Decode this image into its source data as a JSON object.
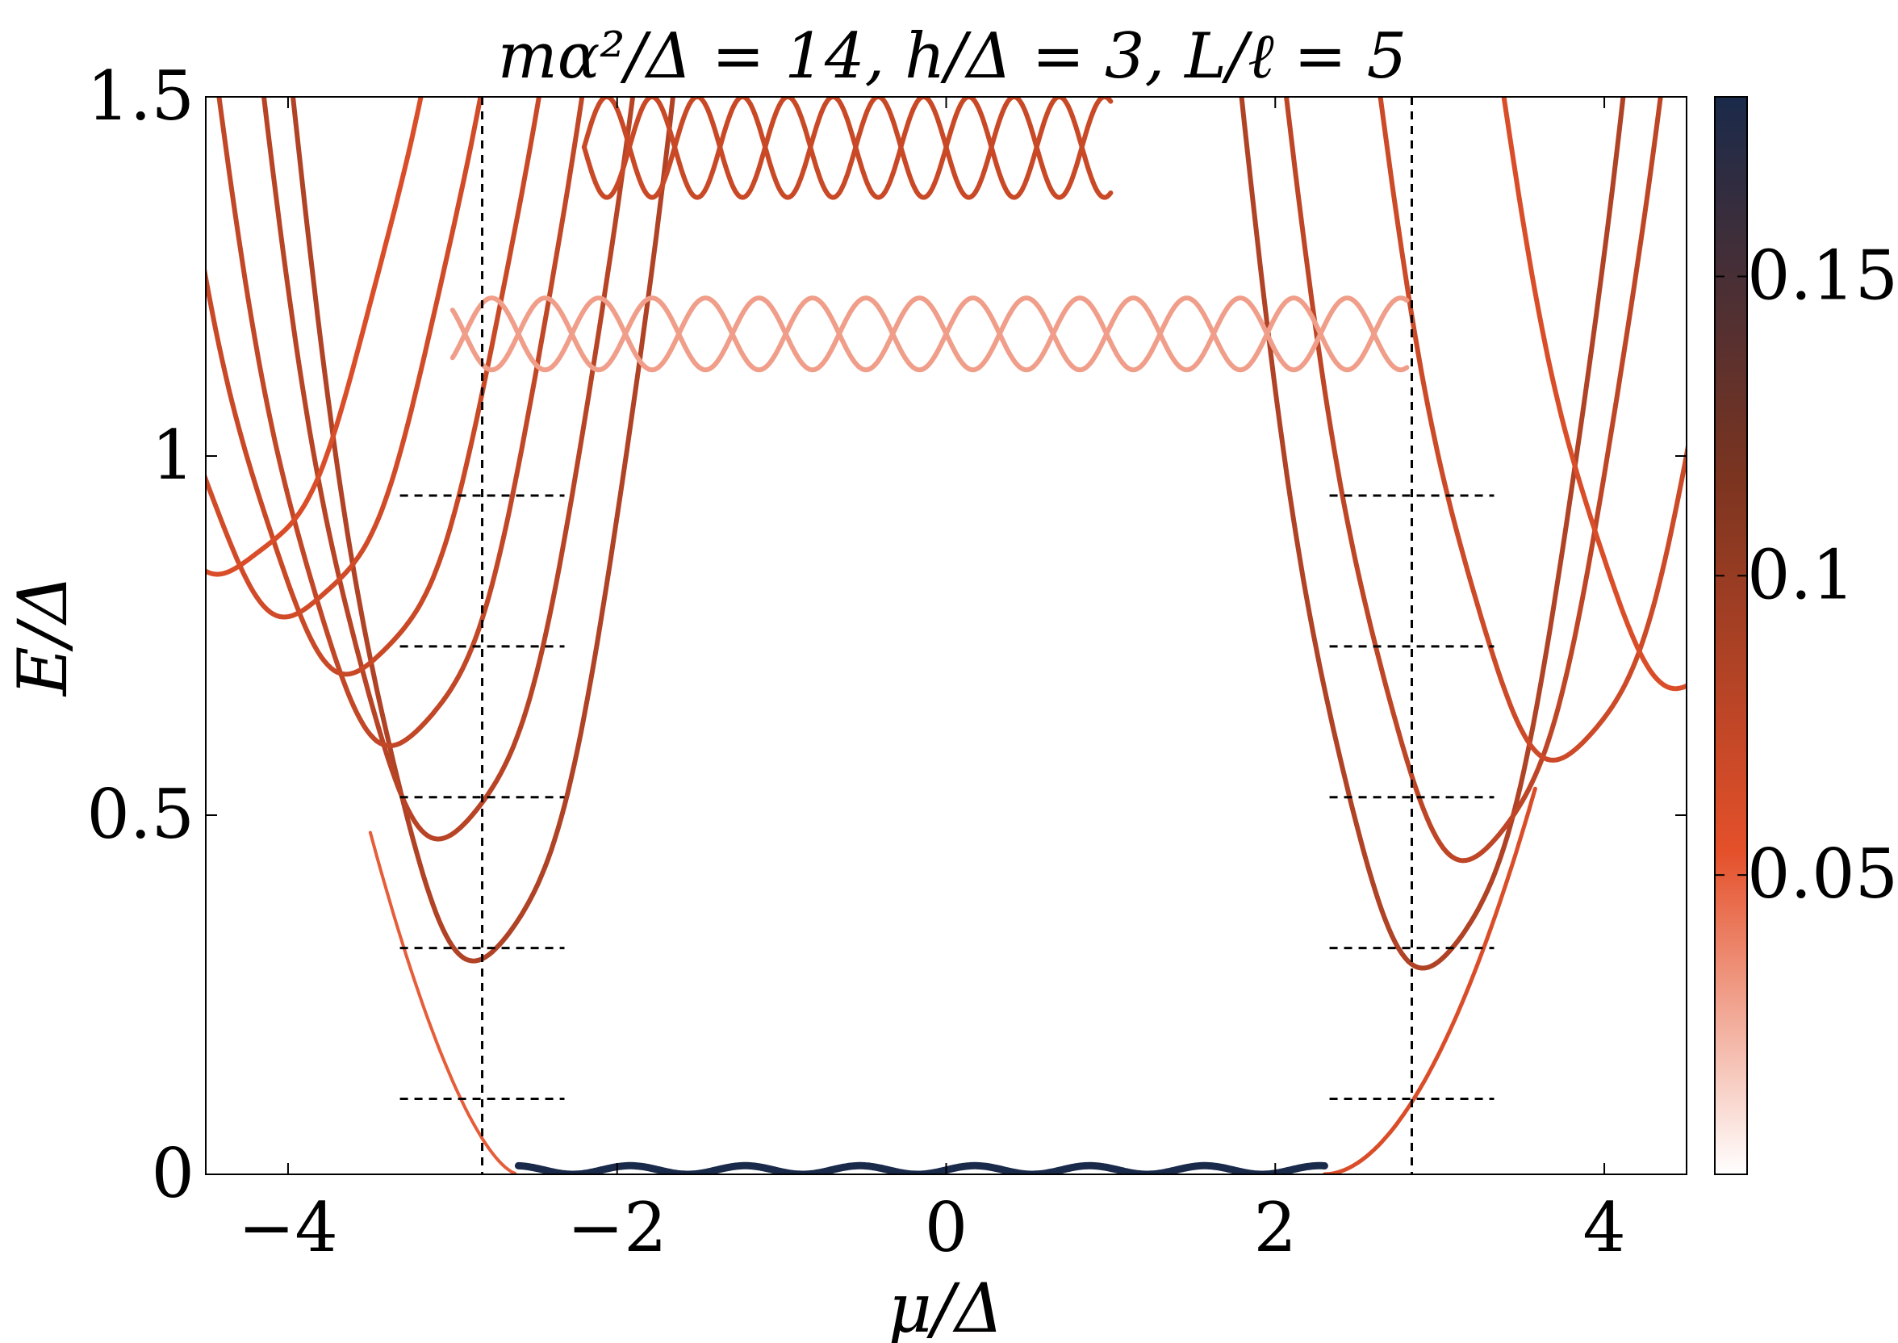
{
  "chart_data": {
    "type": "heatmap",
    "title": "mα²/Δ = 14, h/Δ = 3, L/ℓ = 5",
    "xlabel": "μ/Δ",
    "ylabel": "E/Δ",
    "xlim": [
      -4.5,
      4.5
    ],
    "ylim": [
      0,
      1.5
    ],
    "xticks": [
      -4,
      -2,
      0,
      2,
      4
    ],
    "xtick_labels": [
      "−4",
      "−2",
      "0",
      "2",
      "4"
    ],
    "yticks": [
      0,
      0.5,
      1,
      1.5
    ],
    "ytick_labels": [
      "0",
      "0.5",
      "1",
      "1.5"
    ],
    "colorbar": {
      "range": [
        0,
        0.18
      ],
      "ticks": [
        0.05,
        0.1,
        0.15
      ],
      "tick_labels": [
        "0.05",
        "0.1",
        "0.15"
      ],
      "colors": [
        "#ffffff",
        "#e4502a",
        "#7a3420",
        "#1a2a4a"
      ]
    },
    "vertical_markers": [
      -2.82,
      2.83
    ],
    "horizontal_marker_levels": [
      0.105,
      0.315,
      0.525,
      0.735,
      0.945
    ],
    "horizontal_marker_spans": [
      [
        -3.32,
        -2.32
      ],
      [
        2.33,
        3.33
      ]
    ],
    "zero_mode": {
      "x_range": [
        -2.6,
        2.3
      ],
      "e": 0.0,
      "intensity": 0.18
    },
    "left_lobe_minima": [
      {
        "mu": -2.82,
        "e": 0.3
      },
      {
        "mu": -3.03,
        "e": 0.47
      },
      {
        "mu": -3.32,
        "e": 0.6
      },
      {
        "mu": -3.58,
        "e": 0.7
      },
      {
        "mu": -3.95,
        "e": 0.78
      },
      {
        "mu": -4.35,
        "e": 0.84
      }
    ],
    "right_lobe_minima": [
      {
        "mu": 2.95,
        "e": 0.29
      },
      {
        "mu": 3.2,
        "e": 0.44
      },
      {
        "mu": 3.75,
        "e": 0.58
      },
      {
        "mu": 4.5,
        "e": 0.68
      }
    ],
    "band_series": [
      {
        "e_mean": 1.17,
        "amplitude": 0.05,
        "period": 0.65,
        "x_range": [
          -3.0,
          2.8
        ],
        "intensity": 0.03
      },
      {
        "e_mean": 1.43,
        "amplitude": 0.07,
        "period": 0.55,
        "x_range": [
          -2.2,
          1.0
        ],
        "intensity": 0.07
      }
    ]
  }
}
